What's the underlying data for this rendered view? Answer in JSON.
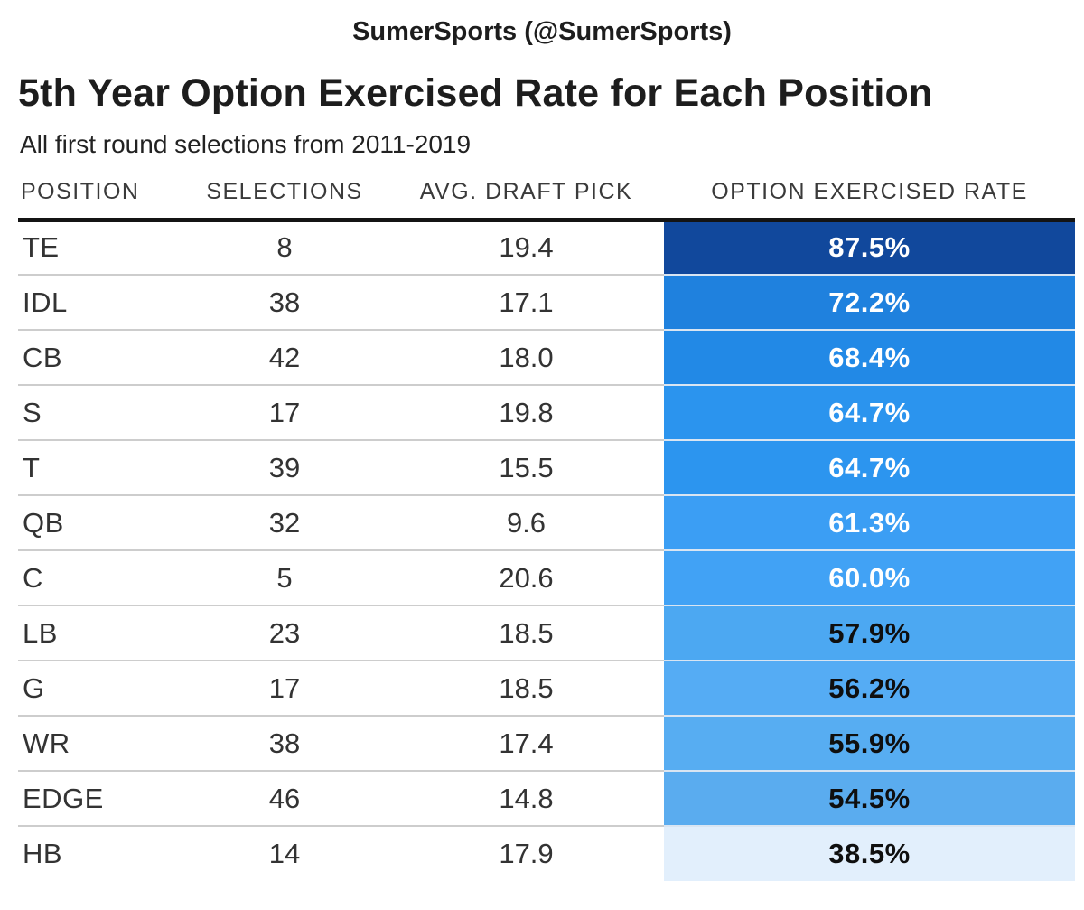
{
  "attribution": "SumerSports (@SumerSports)",
  "title": "5th Year Option Exercised Rate for Each Position",
  "subtitle": "All first round selections from 2011-2019",
  "colors": {
    "header_rule": "#141414",
    "row_separator": "#cdcdcd",
    "scale_high": "#11489c",
    "scale_low": "#e2effc"
  },
  "table": {
    "columns": [
      "POSITION",
      "SELECTIONS",
      "AVG. DRAFT PICK",
      "OPTION EXERCISED RATE"
    ],
    "rows": [
      {
        "position": "TE",
        "selections": "8",
        "avg_draft_pick": "19.4",
        "rate": "87.5%",
        "bg": "#11489c",
        "fg": "#ffffff"
      },
      {
        "position": "IDL",
        "selections": "38",
        "avg_draft_pick": "17.1",
        "rate": "72.2%",
        "bg": "#1f81de",
        "fg": "#ffffff"
      },
      {
        "position": "CB",
        "selections": "42",
        "avg_draft_pick": "18.0",
        "rate": "68.4%",
        "bg": "#2289e6",
        "fg": "#ffffff"
      },
      {
        "position": "S",
        "selections": "17",
        "avg_draft_pick": "19.8",
        "rate": "64.7%",
        "bg": "#2b94ee",
        "fg": "#ffffff"
      },
      {
        "position": "T",
        "selections": "39",
        "avg_draft_pick": "15.5",
        "rate": "64.7%",
        "bg": "#2c95ef",
        "fg": "#ffffff"
      },
      {
        "position": "QB",
        "selections": "32",
        "avg_draft_pick": "9.6",
        "rate": "61.3%",
        "bg": "#3b9ef4",
        "fg": "#ffffff"
      },
      {
        "position": "C",
        "selections": "5",
        "avg_draft_pick": "20.6",
        "rate": "60.0%",
        "bg": "#41a2f5",
        "fg": "#ffffff"
      },
      {
        "position": "LB",
        "selections": "23",
        "avg_draft_pick": "18.5",
        "rate": "57.9%",
        "bg": "#4ca8f2",
        "fg": "#0f0f0f"
      },
      {
        "position": "G",
        "selections": "17",
        "avg_draft_pick": "18.5",
        "rate": "56.2%",
        "bg": "#55acf4",
        "fg": "#0f0f0f"
      },
      {
        "position": "WR",
        "selections": "38",
        "avg_draft_pick": "17.4",
        "rate": "55.9%",
        "bg": "#57adf2",
        "fg": "#0f0f0f"
      },
      {
        "position": "EDGE",
        "selections": "46",
        "avg_draft_pick": "14.8",
        "rate": "54.5%",
        "bg": "#5aacef",
        "fg": "#0f0f0f"
      },
      {
        "position": "HB",
        "selections": "14",
        "avg_draft_pick": "17.9",
        "rate": "38.5%",
        "bg": "#e2effc",
        "fg": "#0f0f0f"
      }
    ]
  },
  "chart_data": {
    "type": "table",
    "title": "5th Year Option Exercised Rate for Each Position",
    "subtitle": "All first round selections from 2011-2019",
    "attribution": "SumerSports (@SumerSports)",
    "columns": [
      "POSITION",
      "SELECTIONS",
      "AVG. DRAFT PICK",
      "OPTION EXERCISED RATE"
    ],
    "rows": [
      {
        "position": "TE",
        "selections": 8,
        "avg_draft_pick": 19.4,
        "option_exercised_rate_pct": 87.5
      },
      {
        "position": "IDL",
        "selections": 38,
        "avg_draft_pick": 17.1,
        "option_exercised_rate_pct": 72.2
      },
      {
        "position": "CB",
        "selections": 42,
        "avg_draft_pick": 18.0,
        "option_exercised_rate_pct": 68.4
      },
      {
        "position": "S",
        "selections": 17,
        "avg_draft_pick": 19.8,
        "option_exercised_rate_pct": 64.7
      },
      {
        "position": "T",
        "selections": 39,
        "avg_draft_pick": 15.5,
        "option_exercised_rate_pct": 64.7
      },
      {
        "position": "QB",
        "selections": 32,
        "avg_draft_pick": 9.6,
        "option_exercised_rate_pct": 61.3
      },
      {
        "position": "C",
        "selections": 5,
        "avg_draft_pick": 20.6,
        "option_exercised_rate_pct": 60.0
      },
      {
        "position": "LB",
        "selections": 23,
        "avg_draft_pick": 18.5,
        "option_exercised_rate_pct": 57.9
      },
      {
        "position": "G",
        "selections": 17,
        "avg_draft_pick": 18.5,
        "option_exercised_rate_pct": 56.2
      },
      {
        "position": "WR",
        "selections": 38,
        "avg_draft_pick": 17.4,
        "option_exercised_rate_pct": 55.9
      },
      {
        "position": "EDGE",
        "selections": 46,
        "avg_draft_pick": 14.8,
        "option_exercised_rate_pct": 54.5
      },
      {
        "position": "HB",
        "selections": 14,
        "avg_draft_pick": 17.9,
        "option_exercised_rate_pct": 38.5
      }
    ],
    "layout": {
      "rate_column_colormap": "blues, dark = high rate",
      "rate_text_color_rule": "white text for rate >= 60.0, black text below",
      "value_range_pct": [
        38.5,
        87.5
      ]
    }
  }
}
